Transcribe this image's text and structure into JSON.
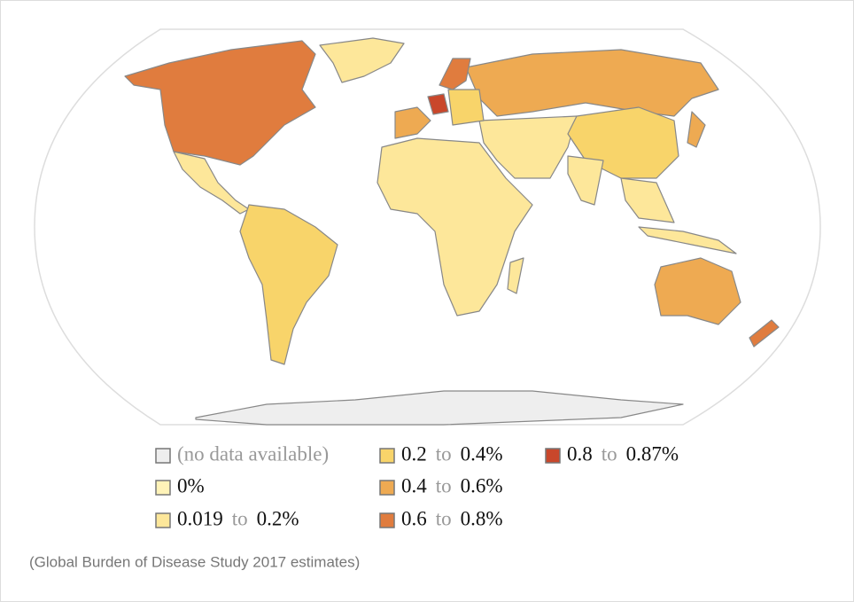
{
  "legend": {
    "connector": "to",
    "items": [
      {
        "label": "(no data available)",
        "color": "#eeeeee"
      },
      {
        "label": "0%",
        "color": "#fff3b8"
      },
      {
        "low": "0.019",
        "high": "0.2%",
        "color": "#fde79a"
      },
      {
        "low": "0.2",
        "high": "0.4%",
        "color": "#f8d46a"
      },
      {
        "low": "0.4",
        "high": "0.6%",
        "color": "#eeaa52"
      },
      {
        "low": "0.6",
        "high": "0.8%",
        "color": "#e07c3e"
      },
      {
        "low": "0.8",
        "high": "0.87%",
        "color": "#c9472b"
      }
    ]
  },
  "footnote": "(Global Burden of Disease Study 2017 estimates)"
}
